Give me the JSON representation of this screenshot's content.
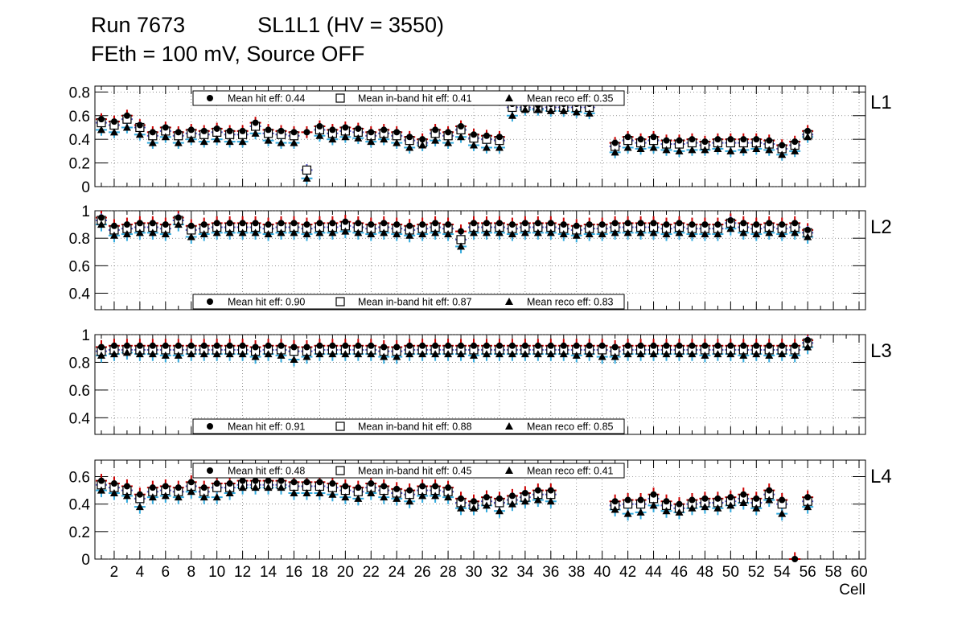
{
  "header": {
    "run": "Run 7673",
    "chamber": "SL1L1 (HV = 3550)",
    "settings": "FEth = 100 mV, Source OFF"
  },
  "colors": {
    "hit": "#000000",
    "inband": "#000000",
    "reco": "#000000",
    "err_hit": "#cc0000",
    "err_inband": "#5555cc",
    "err_reco": "#33aadd",
    "grid": "#555555"
  },
  "chart_data": [
    {
      "type": "scatter",
      "layer": "L1",
      "ylim": [
        0,
        0.85
      ],
      "yticks": [
        "0",
        "0.2",
        "0.4",
        "0.6",
        "0.8"
      ],
      "yticks_values": [
        0,
        0.2,
        0.4,
        0.6,
        0.8
      ],
      "legend_position": "top",
      "legend": [
        "Mean hit  eff: 0.44",
        "Mean in-band hit eff: 0.41",
        "Mean reco eff: 0.35"
      ],
      "x": [
        1,
        2,
        3,
        4,
        5,
        6,
        7,
        8,
        9,
        10,
        11,
        12,
        13,
        14,
        15,
        16,
        17,
        18,
        19,
        20,
        21,
        22,
        23,
        24,
        25,
        26,
        27,
        28,
        29,
        30,
        31,
        32,
        33,
        34,
        35,
        36,
        37,
        38,
        39,
        40,
        41,
        42,
        43,
        44,
        45,
        46,
        47,
        48,
        49,
        50,
        51,
        52,
        53,
        54,
        55,
        56
      ],
      "series": [
        {
          "name": "Mean hit  eff: 0.44",
          "marker": "circle",
          "values": [
            0.57,
            0.55,
            0.6,
            0.52,
            0.46,
            0.5,
            0.46,
            0.48,
            0.47,
            0.49,
            0.47,
            0.47,
            0.54,
            0.48,
            0.47,
            0.46,
            0.46,
            0.51,
            0.48,
            0.5,
            0.49,
            0.46,
            0.48,
            0.46,
            0.42,
            0.4,
            0.48,
            0.46,
            0.51,
            0.44,
            0.43,
            0.42,
            0.7,
            0.7,
            0.69,
            0.7,
            0.7,
            0.7,
            0.7,
            null,
            0.37,
            0.42,
            0.4,
            0.42,
            0.39,
            0.39,
            0.4,
            0.38,
            0.4,
            0.4,
            0.4,
            0.4,
            0.39,
            0.35,
            0.38,
            0.47
          ]
        },
        {
          "name": "Mean in-band hit eff: 0.41",
          "marker": "square",
          "values": [
            0.54,
            0.52,
            0.57,
            0.5,
            0.43,
            0.47,
            0.43,
            0.45,
            0.44,
            0.46,
            0.44,
            0.44,
            0.51,
            0.45,
            0.44,
            0.43,
            0.14,
            0.48,
            0.45,
            0.47,
            0.46,
            0.43,
            0.45,
            0.43,
            0.39,
            0.37,
            0.45,
            0.43,
            0.48,
            0.41,
            0.4,
            0.39,
            0.67,
            0.67,
            0.66,
            0.67,
            0.67,
            0.67,
            0.67,
            null,
            0.34,
            0.39,
            0.37,
            0.39,
            0.36,
            0.36,
            0.37,
            0.35,
            0.37,
            0.37,
            0.37,
            0.37,
            0.36,
            0.32,
            0.35,
            0.44
          ]
        },
        {
          "name": "Mean reco eff: 0.35",
          "marker": "triangle",
          "values": [
            0.48,
            0.46,
            0.5,
            0.44,
            0.37,
            0.42,
            0.37,
            0.4,
            0.38,
            0.4,
            0.38,
            0.38,
            0.45,
            0.39,
            0.37,
            0.37,
            0.07,
            0.43,
            0.4,
            0.42,
            0.41,
            0.38,
            0.4,
            0.37,
            0.33,
            0.35,
            0.39,
            0.37,
            0.42,
            0.35,
            0.33,
            0.33,
            0.6,
            0.65,
            0.65,
            0.64,
            0.64,
            0.63,
            0.62,
            null,
            0.29,
            0.33,
            0.32,
            0.33,
            0.31,
            0.3,
            0.31,
            0.31,
            0.32,
            0.3,
            0.31,
            0.32,
            0.31,
            0.27,
            0.3,
            0.42
          ]
        }
      ]
    },
    {
      "type": "scatter",
      "layer": "L2",
      "ylim": [
        0.28,
        1.0
      ],
      "yticks": [
        "0.4",
        "0.6",
        "0.8",
        "1"
      ],
      "yticks_values": [
        0.4,
        0.6,
        0.8,
        1.0
      ],
      "legend_position": "bottom",
      "legend": [
        "Mean hit  eff: 0.90",
        "Mean in-band hit eff: 0.87",
        "Mean reco eff: 0.83"
      ],
      "x": [
        1,
        2,
        3,
        4,
        5,
        6,
        7,
        8,
        9,
        10,
        11,
        12,
        13,
        14,
        15,
        16,
        17,
        18,
        19,
        20,
        21,
        22,
        23,
        24,
        25,
        26,
        27,
        28,
        29,
        30,
        31,
        32,
        33,
        34,
        35,
        36,
        37,
        38,
        39,
        40,
        41,
        42,
        43,
        44,
        45,
        46,
        47,
        48,
        49,
        50,
        51,
        52,
        53,
        54,
        55,
        56
      ],
      "series": [
        {
          "name": "Mean hit  eff: 0.90",
          "marker": "circle",
          "values": [
            0.95,
            0.89,
            0.9,
            0.91,
            0.91,
            0.9,
            0.95,
            0.89,
            0.9,
            0.91,
            0.91,
            0.91,
            0.91,
            0.9,
            0.91,
            0.91,
            0.9,
            0.91,
            0.91,
            0.92,
            0.91,
            0.9,
            0.91,
            0.9,
            0.89,
            0.9,
            0.91,
            0.9,
            0.85,
            0.91,
            0.91,
            0.91,
            0.9,
            0.91,
            0.91,
            0.91,
            0.9,
            0.89,
            0.9,
            0.9,
            0.91,
            0.91,
            0.91,
            0.91,
            0.9,
            0.91,
            0.9,
            0.9,
            0.9,
            0.93,
            0.91,
            0.9,
            0.91,
            0.9,
            0.91,
            0.86
          ]
        },
        {
          "name": "Mean in-band hit eff: 0.87",
          "marker": "square",
          "values": [
            0.93,
            0.86,
            0.87,
            0.88,
            0.88,
            0.87,
            0.93,
            0.86,
            0.87,
            0.88,
            0.88,
            0.88,
            0.88,
            0.87,
            0.88,
            0.88,
            0.87,
            0.88,
            0.88,
            0.89,
            0.88,
            0.87,
            0.88,
            0.87,
            0.86,
            0.87,
            0.88,
            0.87,
            0.79,
            0.88,
            0.88,
            0.88,
            0.87,
            0.88,
            0.88,
            0.88,
            0.87,
            0.86,
            0.87,
            0.87,
            0.88,
            0.88,
            0.88,
            0.88,
            0.87,
            0.88,
            0.87,
            0.87,
            0.87,
            0.91,
            0.88,
            0.87,
            0.88,
            0.87,
            0.88,
            0.84
          ]
        },
        {
          "name": "Mean reco eff: 0.83",
          "marker": "triangle",
          "values": [
            0.9,
            0.82,
            0.83,
            0.84,
            0.84,
            0.83,
            0.9,
            0.81,
            0.83,
            0.84,
            0.84,
            0.84,
            0.84,
            0.83,
            0.84,
            0.84,
            0.83,
            0.84,
            0.84,
            0.85,
            0.84,
            0.83,
            0.84,
            0.83,
            0.82,
            0.83,
            0.84,
            0.83,
            0.74,
            0.84,
            0.84,
            0.84,
            0.83,
            0.84,
            0.84,
            0.84,
            0.83,
            0.82,
            0.83,
            0.83,
            0.84,
            0.84,
            0.84,
            0.84,
            0.83,
            0.84,
            0.83,
            0.83,
            0.83,
            0.87,
            0.84,
            0.83,
            0.84,
            0.83,
            0.84,
            0.81
          ]
        }
      ]
    },
    {
      "type": "scatter",
      "layer": "L3",
      "ylim": [
        0.28,
        1.0
      ],
      "yticks": [
        "0.4",
        "0.6",
        "0.8",
        "1"
      ],
      "yticks_values": [
        0.4,
        0.6,
        0.8,
        1.0
      ],
      "legend_position": "bottom",
      "legend": [
        "Mean hit  eff: 0.91",
        "Mean in-band hit eff: 0.88",
        "Mean reco eff: 0.85"
      ],
      "x": [
        1,
        2,
        3,
        4,
        5,
        6,
        7,
        8,
        9,
        10,
        11,
        12,
        13,
        14,
        15,
        16,
        17,
        18,
        19,
        20,
        21,
        22,
        23,
        24,
        25,
        26,
        27,
        28,
        29,
        30,
        31,
        32,
        33,
        34,
        35,
        36,
        37,
        38,
        39,
        40,
        41,
        42,
        43,
        44,
        45,
        46,
        47,
        48,
        49,
        50,
        51,
        52,
        53,
        54,
        55,
        56
      ],
      "series": [
        {
          "name": "Mean hit  eff: 0.91",
          "marker": "circle",
          "values": [
            0.91,
            0.92,
            0.92,
            0.92,
            0.92,
            0.92,
            0.92,
            0.92,
            0.92,
            0.92,
            0.92,
            0.92,
            0.91,
            0.92,
            0.92,
            0.91,
            0.91,
            0.92,
            0.92,
            0.92,
            0.92,
            0.92,
            0.91,
            0.91,
            0.92,
            0.92,
            0.92,
            0.92,
            0.92,
            0.92,
            0.92,
            0.92,
            0.92,
            0.92,
            0.92,
            0.92,
            0.92,
            0.92,
            0.92,
            0.92,
            0.91,
            0.92,
            0.92,
            0.92,
            0.92,
            0.92,
            0.92,
            0.92,
            0.92,
            0.92,
            0.92,
            0.92,
            0.92,
            0.92,
            0.92,
            0.96
          ]
        },
        {
          "name": "Mean in-band hit eff: 0.88",
          "marker": "square",
          "values": [
            0.88,
            0.89,
            0.89,
            0.89,
            0.89,
            0.89,
            0.89,
            0.89,
            0.89,
            0.89,
            0.89,
            0.89,
            0.88,
            0.89,
            0.89,
            0.88,
            0.88,
            0.89,
            0.89,
            0.89,
            0.89,
            0.89,
            0.88,
            0.88,
            0.89,
            0.89,
            0.89,
            0.89,
            0.89,
            0.89,
            0.89,
            0.89,
            0.89,
            0.89,
            0.89,
            0.89,
            0.89,
            0.89,
            0.89,
            0.89,
            0.88,
            0.89,
            0.89,
            0.89,
            0.89,
            0.89,
            0.89,
            0.89,
            0.89,
            0.89,
            0.89,
            0.89,
            0.89,
            0.89,
            0.89,
            0.94
          ]
        },
        {
          "name": "Mean reco eff: 0.85",
          "marker": "triangle",
          "values": [
            0.85,
            0.86,
            0.87,
            0.86,
            0.86,
            0.85,
            0.85,
            0.86,
            0.86,
            0.86,
            0.86,
            0.86,
            0.84,
            0.86,
            0.85,
            0.82,
            0.84,
            0.86,
            0.86,
            0.86,
            0.86,
            0.86,
            0.84,
            0.84,
            0.86,
            0.86,
            0.86,
            0.86,
            0.86,
            0.85,
            0.86,
            0.86,
            0.86,
            0.86,
            0.86,
            0.86,
            0.86,
            0.85,
            0.86,
            0.84,
            0.84,
            0.86,
            0.86,
            0.86,
            0.86,
            0.86,
            0.86,
            0.85,
            0.86,
            0.86,
            0.85,
            0.86,
            0.85,
            0.86,
            0.85,
            0.91
          ]
        }
      ]
    },
    {
      "type": "scatter",
      "layer": "L4",
      "ylim": [
        0,
        0.72
      ],
      "yticks": [
        "0",
        "0.2",
        "0.4",
        "0.6"
      ],
      "yticks_values": [
        0,
        0.2,
        0.4,
        0.6
      ],
      "legend_position": "top",
      "legend": [
        "Mean hit  eff: 0.48",
        "Mean in-band hit eff: 0.45",
        "Mean reco eff: 0.41"
      ],
      "xlabel": "Cell",
      "xticks": [
        "2",
        "4",
        "6",
        "8",
        "10",
        "12",
        "14",
        "16",
        "18",
        "20",
        "22",
        "24",
        "26",
        "28",
        "30",
        "32",
        "34",
        "36",
        "38",
        "40",
        "42",
        "44",
        "46",
        "48",
        "50",
        "52",
        "54",
        "56",
        "58",
        "60"
      ],
      "xticks_values": [
        2,
        4,
        6,
        8,
        10,
        12,
        14,
        16,
        18,
        20,
        22,
        24,
        26,
        28,
        30,
        32,
        34,
        36,
        38,
        40,
        42,
        44,
        46,
        48,
        50,
        52,
        54,
        56,
        58,
        60
      ],
      "xlim": [
        0.5,
        60.5
      ],
      "x": [
        1,
        2,
        3,
        4,
        5,
        6,
        7,
        8,
        9,
        10,
        11,
        12,
        13,
        14,
        15,
        16,
        17,
        18,
        19,
        20,
        21,
        22,
        23,
        24,
        25,
        26,
        27,
        28,
        29,
        30,
        31,
        32,
        33,
        34,
        35,
        36,
        37,
        38,
        39,
        40,
        41,
        42,
        43,
        44,
        45,
        46,
        47,
        48,
        49,
        50,
        51,
        52,
        53,
        54,
        55,
        56
      ],
      "series": [
        {
          "name": "Mean hit  eff: 0.48",
          "marker": "circle",
          "values": [
            0.57,
            0.55,
            0.53,
            0.47,
            0.52,
            0.53,
            0.52,
            0.56,
            0.52,
            0.55,
            0.55,
            0.57,
            0.57,
            0.57,
            0.57,
            0.56,
            0.56,
            0.56,
            0.55,
            0.53,
            0.52,
            0.55,
            0.53,
            0.51,
            0.5,
            0.53,
            0.53,
            0.52,
            0.44,
            0.42,
            0.45,
            0.44,
            0.46,
            0.48,
            0.5,
            0.5,
            null,
            null,
            null,
            null,
            0.42,
            0.43,
            0.43,
            0.47,
            0.42,
            0.4,
            0.43,
            0.44,
            0.44,
            0.45,
            0.47,
            0.44,
            0.5,
            0.43,
            0.0,
            0.45
          ]
        },
        {
          "name": "Mean in-band hit eff: 0.45",
          "marker": "square",
          "values": [
            0.54,
            0.52,
            0.5,
            0.44,
            0.49,
            0.5,
            0.49,
            0.53,
            0.49,
            0.52,
            0.52,
            0.54,
            0.54,
            0.54,
            0.54,
            0.53,
            0.53,
            0.53,
            0.52,
            0.5,
            0.49,
            0.52,
            0.5,
            0.48,
            0.47,
            0.5,
            0.5,
            0.49,
            0.41,
            0.39,
            0.42,
            0.41,
            0.43,
            0.45,
            0.47,
            0.47,
            null,
            null,
            null,
            null,
            0.39,
            0.4,
            0.4,
            0.44,
            0.39,
            0.37,
            0.4,
            0.41,
            0.41,
            0.42,
            0.44,
            0.41,
            0.47,
            0.4,
            null,
            0.42
          ]
        },
        {
          "name": "Mean reco eff: 0.41",
          "marker": "triangle",
          "values": [
            0.5,
            0.48,
            0.46,
            0.38,
            0.45,
            0.46,
            0.45,
            0.49,
            0.45,
            0.45,
            0.48,
            0.52,
            0.52,
            0.52,
            0.52,
            0.48,
            0.48,
            0.48,
            0.47,
            0.45,
            0.44,
            0.48,
            0.45,
            0.44,
            0.42,
            0.46,
            0.46,
            0.45,
            0.37,
            0.37,
            0.39,
            0.35,
            0.4,
            0.42,
            0.43,
            0.42,
            null,
            null,
            null,
            null,
            0.36,
            0.33,
            0.34,
            0.39,
            0.35,
            0.34,
            0.37,
            0.38,
            0.37,
            0.39,
            0.41,
            0.37,
            0.43,
            0.33,
            null,
            0.38
          ]
        }
      ]
    }
  ]
}
